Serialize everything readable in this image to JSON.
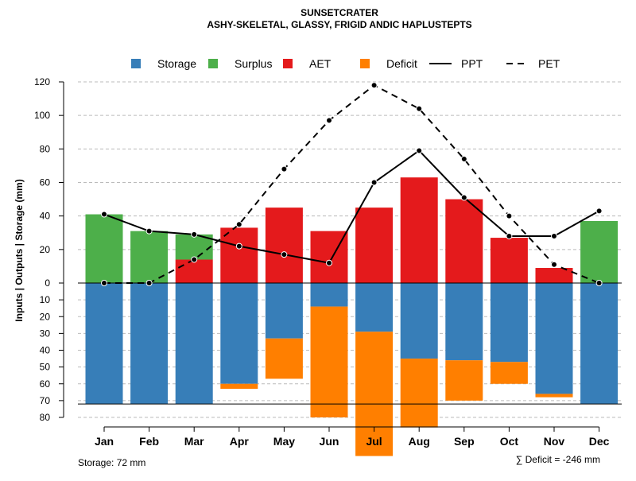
{
  "chart_data": {
    "type": "water-balance",
    "title": "SUNSETCRATER",
    "subtitle": "ASHY-SKELETAL, GLASSY, FRIGID ANDIC HAPLUSTEPTS",
    "ylabel": "Inputs | Outputs | Storage    (mm)",
    "ylim_top": [
      0,
      120
    ],
    "ylim_bottom": [
      0,
      80
    ],
    "yticks_top": [
      0,
      20,
      40,
      60,
      80,
      100,
      120
    ],
    "yticks_bottom": [
      10,
      20,
      30,
      40,
      50,
      60,
      70,
      80
    ],
    "storage_capacity": 72,
    "categories": [
      "Jan",
      "Feb",
      "Mar",
      "Apr",
      "May",
      "Jun",
      "Jul",
      "Aug",
      "Sep",
      "Oct",
      "Nov",
      "Dec"
    ],
    "series": [
      {
        "name": "Storage",
        "color": "#377EB8",
        "values": [
          72,
          72,
          72,
          60,
          33,
          14,
          29,
          45,
          46,
          47,
          66,
          72
        ]
      },
      {
        "name": "Surplus",
        "color": "#4DAF4A",
        "values": [
          41,
          31,
          15,
          0,
          0,
          0,
          0,
          0,
          0,
          0,
          0,
          37
        ]
      },
      {
        "name": "AET",
        "color": "#E41A1C",
        "values": [
          0,
          0,
          14,
          33,
          45,
          31,
          45,
          63,
          50,
          27,
          9,
          0
        ]
      },
      {
        "name": "Deficit",
        "color": "#FF7F00",
        "values": [
          0,
          0,
          0,
          3,
          24,
          66,
          74,
          41,
          24,
          13,
          2,
          0
        ]
      },
      {
        "name": "PPT",
        "style": "solid",
        "values": [
          41,
          31,
          29,
          22,
          17,
          12,
          60,
          79,
          51,
          28,
          28,
          43
        ]
      },
      {
        "name": "PET",
        "style": "dashed",
        "values": [
          0,
          0,
          14,
          35,
          68,
          97,
          118,
          104,
          74,
          40,
          11,
          0
        ]
      }
    ],
    "legend": [
      "Storage",
      "Surplus",
      "AET",
      "Deficit",
      "PPT",
      "PET"
    ],
    "legend_position": "top",
    "grid": true,
    "footer_left": "Storage: 72 mm",
    "footer_right": "∑ Deficit = -246 mm"
  }
}
